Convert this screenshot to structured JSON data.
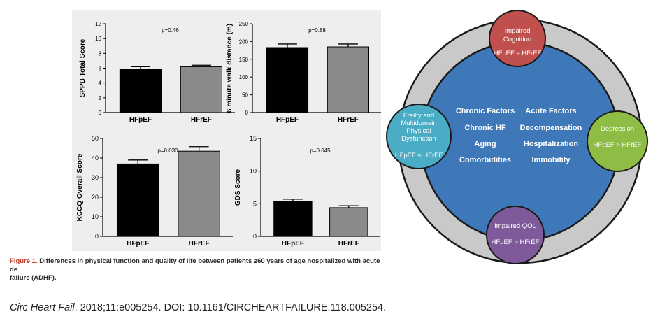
{
  "chart_data": [
    {
      "type": "bar",
      "categories": [
        "HFpEF",
        "HFrEF"
      ],
      "values": [
        5.9,
        6.2
      ],
      "errors": [
        0.3,
        0.2
      ],
      "colors": [
        "#000000",
        "#8a8a8a"
      ],
      "ylabel": "SPPB Total Score",
      "ylim": [
        0,
        12
      ],
      "yticks": [
        "0",
        "2",
        "4",
        "6",
        "8",
        "10",
        "12"
      ],
      "annotation": "p=0.46"
    },
    {
      "type": "bar",
      "categories": [
        "HFpEF",
        "HFrEF"
      ],
      "values": [
        183,
        185
      ],
      "errors": [
        10,
        8
      ],
      "colors": [
        "#000000",
        "#8a8a8a"
      ],
      "ylabel": "6 minute walk distance (m)",
      "ylim": [
        0,
        250
      ],
      "yticks": [
        "0",
        "50",
        "100",
        "150",
        "200",
        "250"
      ],
      "annotation": "p=0.88"
    },
    {
      "type": "bar",
      "categories": [
        "HFpEF",
        "HFrEF"
      ],
      "values": [
        37,
        43.5
      ],
      "errors": [
        2,
        2.3
      ],
      "colors": [
        "#000000",
        "#8a8a8a"
      ],
      "ylabel": "KCCQ Overall Score",
      "ylim": [
        0,
        50
      ],
      "yticks": [
        "0",
        "10",
        "20",
        "30",
        "40",
        "50"
      ],
      "annotation": "p=0.030"
    },
    {
      "type": "bar",
      "categories": [
        "HFpEF",
        "HFrEF"
      ],
      "values": [
        5.4,
        4.4
      ],
      "errors": [
        0.3,
        0.3
      ],
      "colors": [
        "#000000",
        "#8a8a8a"
      ],
      "ylabel": "GDS Score",
      "ylim": [
        0,
        15
      ],
      "yticks": [
        "0",
        "5",
        "10",
        "15"
      ],
      "annotation": "p=0.045"
    }
  ],
  "caption": {
    "label": "Figure 1.",
    "text": "Differences in physical function and quality of life between patients ≥60 years of age hospitalized with acute de",
    "text_line2": "failure (ADHF)."
  },
  "citation": {
    "journal": "Circ Heart Fail",
    "rest": ". 2018;11:e005254. DOI: 10.1161/CIRCHEARTFAILURE.118.005254."
  },
  "diagram": {
    "colors": {
      "outer_ring": "#c9c9c9",
      "center": "#3f78b8",
      "cognition": "#c0504d",
      "depression": "#8fbc44",
      "qol": "#7e5a9b",
      "frailty": "#4bacc6"
    },
    "center": {
      "left_column": [
        "Chronic Factors",
        "Chronic HF",
        "Aging",
        "Comorbidities"
      ],
      "right_column": [
        "Acute Factors",
        "Decompensation",
        "Hospitalization",
        "Immobility"
      ]
    },
    "nodes": {
      "cognition": {
        "title_line1": "Impaired",
        "title_line2": "Cognition",
        "relation": "HFpEF ≈ HFrEF"
      },
      "depression": {
        "title": "Depression",
        "relation": "HFpEF > HFrEF"
      },
      "qol": {
        "title": "Impaired QOL",
        "relation": "HFpEF > HFrEF"
      },
      "frailty": {
        "title_line1": "Frailty and",
        "title_line2": "Multidomain",
        "title_line3": "Physical",
        "title_line4": "Dysfunction",
        "relation": "HFpEF ≈ HFrEF"
      }
    }
  }
}
